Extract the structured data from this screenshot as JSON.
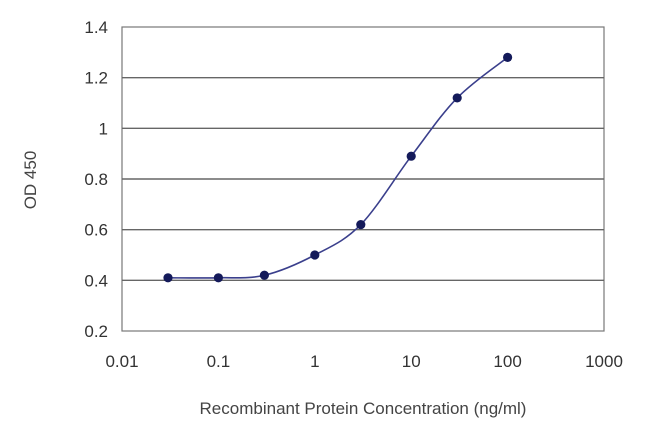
{
  "chart_data": {
    "type": "line",
    "title": "",
    "xlabel": "Recombinant Protein Concentration (ng/ml)",
    "ylabel": "OD 450",
    "xscale": "log",
    "xlim": [
      0.01,
      1000
    ],
    "ylim": [
      0.2,
      1.4
    ],
    "x_tick_values": [
      0.01,
      0.1,
      1,
      10,
      100,
      1000
    ],
    "x_tick_labels": [
      "0.01",
      "0.1",
      "1",
      "10",
      "100",
      "1000"
    ],
    "y_tick_values": [
      0.2,
      0.4,
      0.6,
      0.8,
      1.0,
      1.2,
      1.4
    ],
    "y_tick_labels": [
      "0.2",
      "0.4",
      "0.6",
      "0.8",
      "1",
      "1.2",
      "1.4"
    ],
    "grid": "horizontal",
    "legend": "none",
    "series": [
      {
        "x": [
          0.03,
          0.1,
          0.3,
          1,
          3,
          10,
          30,
          100
        ],
        "y": [
          0.41,
          0.41,
          0.42,
          0.5,
          0.62,
          0.89,
          1.12,
          1.28
        ]
      }
    ],
    "colors": {
      "line": "#3a3f8c",
      "marker": "#141a5a",
      "grid": "#666666"
    }
  }
}
